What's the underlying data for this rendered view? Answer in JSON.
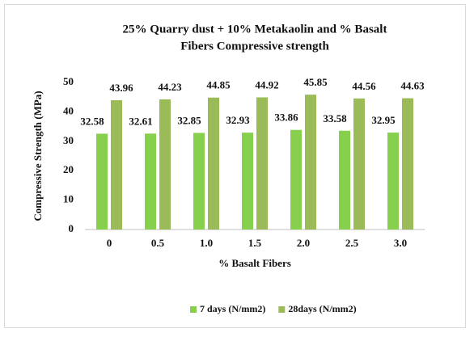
{
  "chart_data": {
    "type": "bar",
    "title": [
      "25% Quarry dust + 10% Metakaolin and % Basalt",
      "Fibers  Compressive strength"
    ],
    "x_label": "% Basalt Fibers",
    "y_label": "Compressive Strength (MPa)",
    "categories": [
      "0",
      "0.5",
      "1.0",
      "1.5",
      "2.0",
      "2.5",
      "3.0"
    ],
    "series": [
      {
        "name": "7 days (N/mm2)",
        "color": "#86d04e",
        "values": [
          32.58,
          32.61,
          32.85,
          32.93,
          33.86,
          33.58,
          32.95
        ]
      },
      {
        "name": "28days (N/mm2)",
        "color": "#9bbb59",
        "values": [
          43.96,
          44.23,
          44.85,
          44.92,
          45.85,
          44.56,
          44.63
        ]
      }
    ],
    "ylim": [
      0,
      50
    ],
    "yticks": [
      0,
      10,
      20,
      30,
      40,
      50
    ],
    "grid": false,
    "legend": "bottom"
  }
}
